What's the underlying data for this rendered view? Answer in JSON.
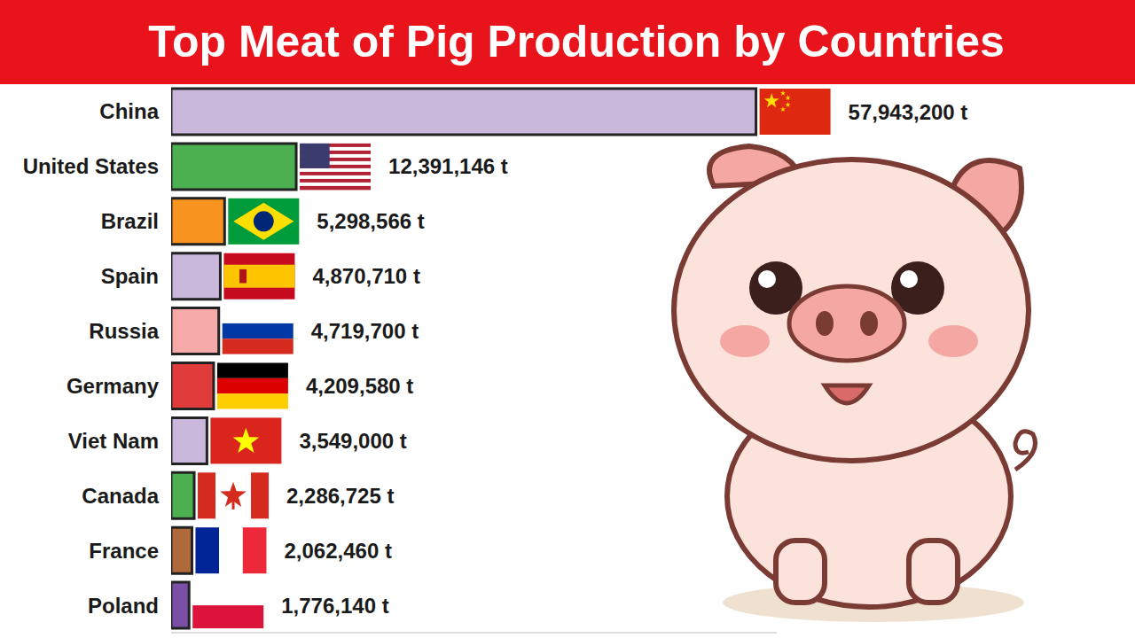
{
  "chart_data": {
    "type": "bar",
    "title": "Top Meat of Pig Production by Countries",
    "orientation": "horizontal",
    "categories": [
      "China",
      "United States",
      "Brazil",
      "Spain",
      "Russia",
      "Germany",
      "Viet Nam",
      "Canada",
      "France",
      "Poland"
    ],
    "values": [
      57943200,
      12391146,
      5298566,
      4870710,
      4719700,
      4209580,
      3549000,
      2286725,
      2062460,
      1776140
    ],
    "value_labels": [
      "57,943,200 t",
      "12,391,146 t",
      "5,298,566 t",
      "4,870,710 t",
      "4,719,700 t",
      "4,209,580 t",
      "3,549,000 t",
      "2,286,725 t",
      "2,062,460 t",
      "1,776,140 t"
    ],
    "colors": [
      "#c9b8dc",
      "#4caf50",
      "#f7931e",
      "#c9b8dc",
      "#f6a9a9",
      "#e03c3c",
      "#c9b8dc",
      "#4caf50",
      "#b0693a",
      "#7b4fa6"
    ],
    "xlim": [
      0,
      60000000
    ],
    "tick_labels": false,
    "data_labels": true,
    "grid": false
  }
}
